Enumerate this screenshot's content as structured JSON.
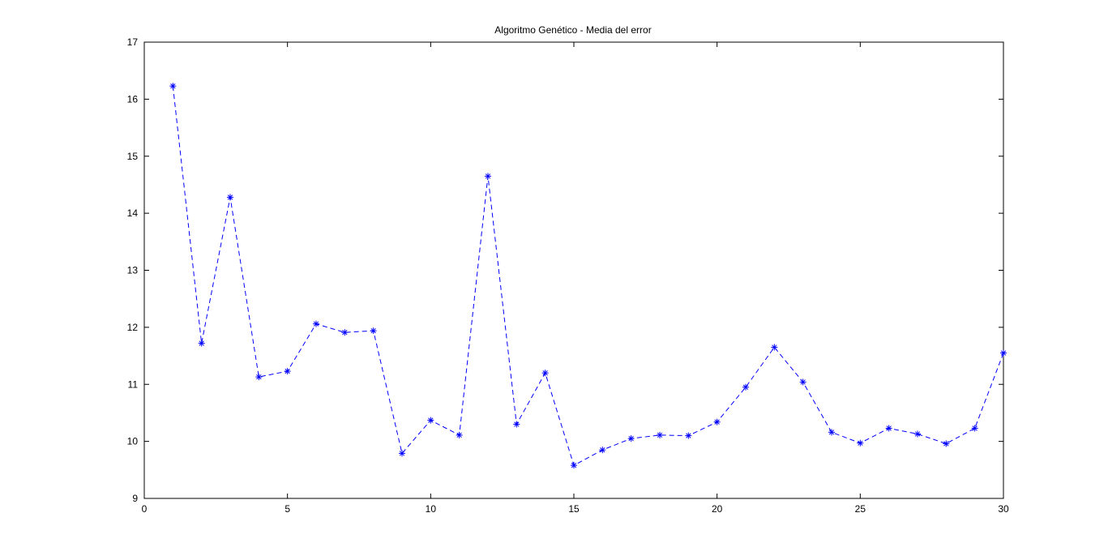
{
  "window": {
    "title": "Algoritmo Genético - Media del error"
  },
  "colors": {
    "series": "#0000ff",
    "axes": "#000000",
    "background": "#ffffff"
  },
  "chart_data": {
    "type": "line",
    "title": "Algoritmo Genético - Media del error",
    "xlabel": "",
    "ylabel": "",
    "xlim": [
      0,
      30
    ],
    "ylim": [
      9,
      17
    ],
    "xticks": [
      0,
      5,
      10,
      15,
      20,
      25,
      30
    ],
    "yticks": [
      9,
      10,
      11,
      12,
      13,
      14,
      15,
      16,
      17
    ],
    "grid": false,
    "line_style": "dashed",
    "marker": "asterisk",
    "series": [
      {
        "x": [
          1,
          2,
          3,
          4,
          5,
          6,
          7,
          8,
          9,
          10,
          11,
          12,
          13,
          14,
          15,
          16,
          17,
          18,
          19,
          20,
          21,
          22,
          23,
          24,
          25,
          26,
          27,
          28,
          29,
          30
        ],
        "values": [
          16.23,
          11.72,
          14.28,
          11.13,
          11.23,
          12.06,
          11.91,
          11.94,
          9.79,
          10.37,
          10.11,
          14.65,
          10.3,
          11.2,
          9.58,
          9.85,
          10.05,
          10.11,
          10.1,
          10.34,
          10.95,
          11.65,
          11.04,
          10.16,
          9.97,
          10.23,
          10.13,
          9.96,
          10.23,
          11.55
        ]
      }
    ]
  }
}
